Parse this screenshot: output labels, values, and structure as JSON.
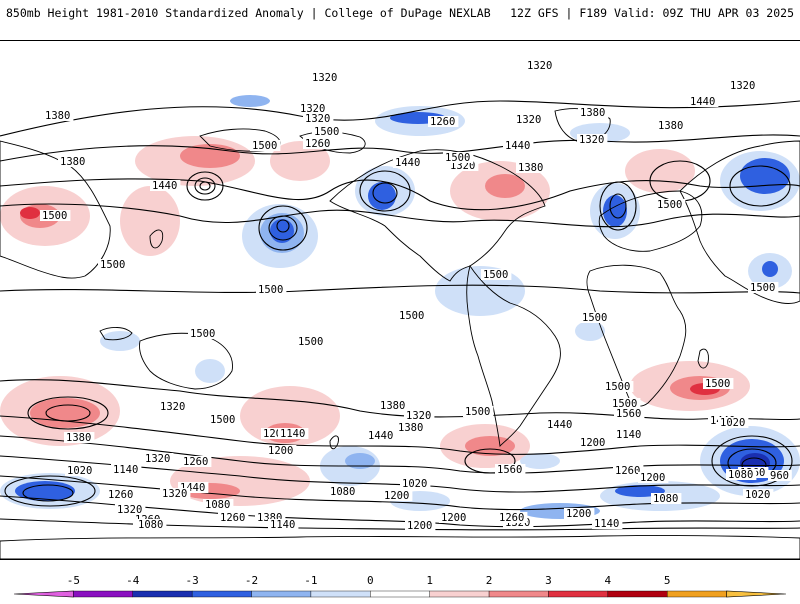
{
  "header": {
    "title": "850mb Height 1981-2010 Standardized Anomaly | College of DuPage NEXLAB",
    "run_info": "12Z GFS | F189 Valid: 09Z THU APR 03 2025"
  },
  "colorbar": {
    "ticks": [
      "-5",
      "-4",
      "-3",
      "-2",
      "-1",
      "0",
      "1",
      "2",
      "3",
      "4",
      "5"
    ],
    "colors": [
      "#e060e0",
      "#8a10c0",
      "#1a2fb0",
      "#2f60e0",
      "#8fb4f0",
      "#cfe0f8",
      "#ffffff",
      "#f8d0d0",
      "#f0888a",
      "#e03040",
      "#b00010",
      "#f0a020",
      "#f8c040"
    ]
  },
  "map": {
    "contour_labels": [
      "1320",
      "1320",
      "1320",
      "1320",
      "1380",
      "1320",
      "1380",
      "1440",
      "1500",
      "1320",
      "1260",
      "1320",
      "1260",
      "1380",
      "1440",
      "1320",
      "1440",
      "1380",
      "1500",
      "1380",
      "1440",
      "1500",
      "1500",
      "1500",
      "1500",
      "1500",
      "1500",
      "1500",
      "1500",
      "1500",
      "1500",
      "1500",
      "1500",
      "1500",
      "1500",
      "1560",
      "1500",
      "1380",
      "1320",
      "1440",
      "1380",
      "1320",
      "1500",
      "1380",
      "1320",
      "1200",
      "1140",
      "1200",
      "1260",
      "1440",
      "1560",
      "1440",
      "1200",
      "1140",
      "1260",
      "1200",
      "1440",
      "1020",
      "1140",
      "1080",
      "1080",
      "1020",
      "1200",
      "1260",
      "1320",
      "1380",
      "1260",
      "1200",
      "1320",
      "1200",
      "1140",
      "1080",
      "1020",
      "1260",
      "960",
      "1080",
      "1020",
      "1320",
      "1260",
      "1140",
      "1080",
      "1200",
      "1260"
    ],
    "colors": {
      "positive_light": "#f8d0d0",
      "positive_mid": "#f0888a",
      "positive_strong": "#e03040",
      "negative_light": "#cfe0f8",
      "negative_mid": "#8fb4f0",
      "negative_strong": "#2f60e0",
      "negative_deep": "#1a2fb0",
      "contour": "#000000",
      "coast": "#000000"
    }
  }
}
